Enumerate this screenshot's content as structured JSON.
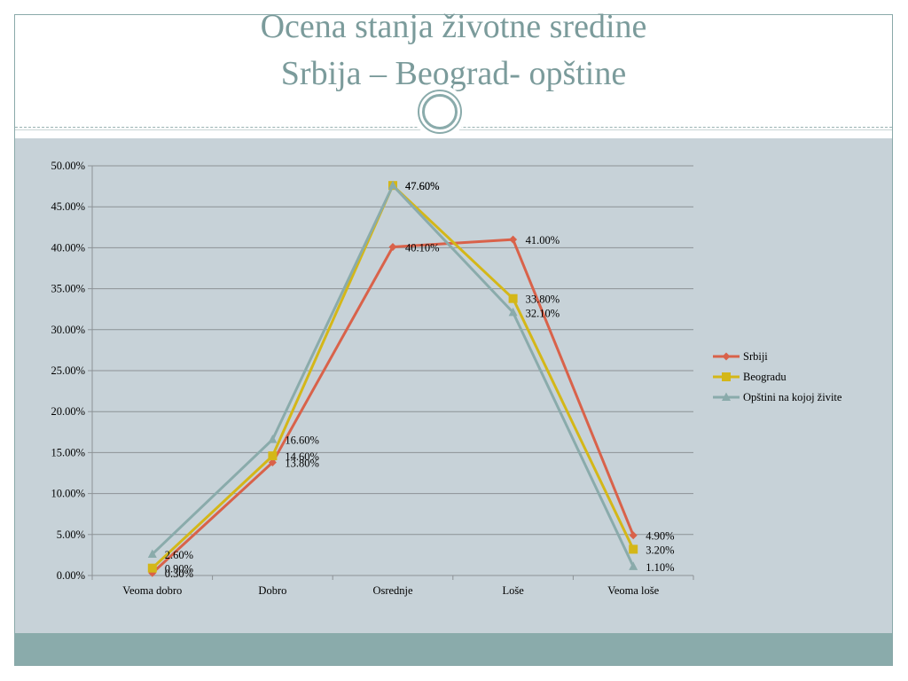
{
  "slide": {
    "title_line_1": "Ocena stanja životne sredine",
    "title_line_2": "Srbija – Beograd- opštine"
  },
  "colors": {
    "accent": "#8aabab",
    "title": "#7b9b9b",
    "content_bg": "#c7d2d8",
    "grid": "#8c9296",
    "axis": "#8c9296"
  },
  "chart_data": {
    "type": "line",
    "title": "",
    "xlabel": "",
    "ylabel": "",
    "categories": [
      "Veoma dobro",
      "Dobro",
      "Osrednje",
      "Loše",
      "Veoma loše"
    ],
    "ylim": [
      0,
      50
    ],
    "yticks": [
      0,
      5,
      10,
      15,
      20,
      25,
      30,
      35,
      40,
      45,
      50
    ],
    "ytick_labels": [
      "0.00%",
      "5.00%",
      "10.00%",
      "15.00%",
      "20.00%",
      "25.00%",
      "30.00%",
      "35.00%",
      "40.00%",
      "45.00%",
      "50.00%"
    ],
    "grid": true,
    "legend_position": "right",
    "series": [
      {
        "name": "Srbiji",
        "color": "#d9624a",
        "marker": "diamond",
        "values": [
          0.3,
          13.8,
          40.1,
          41.0,
          4.9
        ],
        "labels": [
          "0.30%",
          "13.80%",
          "40.10%",
          "41.00%",
          "4.90%"
        ]
      },
      {
        "name": "Beogradu",
        "color": "#d4b718",
        "marker": "square",
        "values": [
          0.9,
          14.6,
          47.6,
          33.8,
          3.2
        ],
        "labels": [
          "0.90%",
          "14.60%",
          "47.60%",
          "33.80%",
          "3.20%"
        ]
      },
      {
        "name": "Opštini na kojoj živite",
        "color": "#8aabab",
        "marker": "triangle",
        "values": [
          2.6,
          16.6,
          47.6,
          32.1,
          1.1
        ],
        "labels": [
          "2.60%",
          "16.60%",
          "47.60%",
          "32.10%",
          "1.10%"
        ]
      }
    ]
  }
}
